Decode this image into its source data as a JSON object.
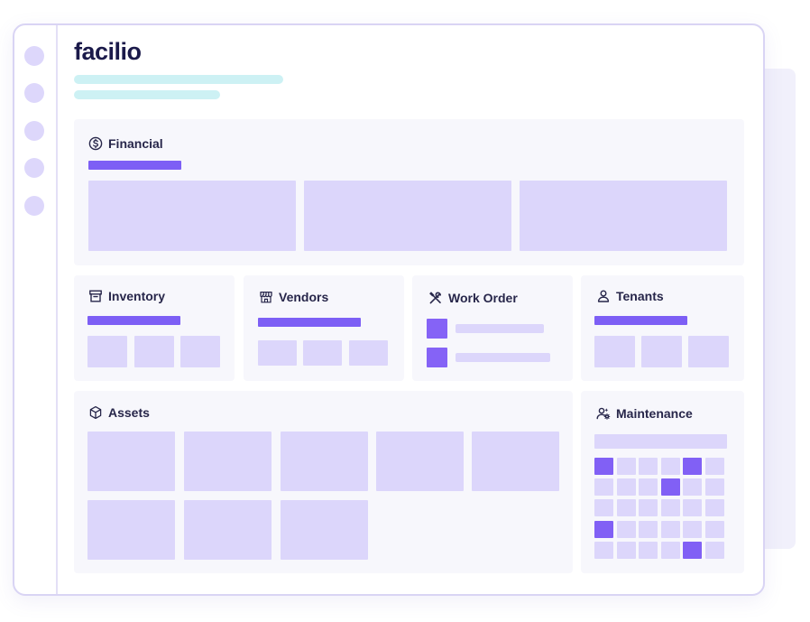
{
  "app": {
    "logo_text": "facilio"
  },
  "brand_colors": {
    "accent": "#7d5ff5",
    "light": "#dcd6fb",
    "cyan": "#cdf1f4",
    "panel": "#f7f7fc"
  },
  "sections": {
    "financial": {
      "title": "Financial",
      "icon": "dollar-circle-icon"
    },
    "inventory": {
      "title": "Inventory",
      "icon": "archive-box-icon"
    },
    "vendors": {
      "title": "Vendors",
      "icon": "storefront-icon"
    },
    "work_order": {
      "title": "Work Order",
      "icon": "tools-icon"
    },
    "tenants": {
      "title": "Tenants",
      "icon": "user-icon"
    },
    "assets": {
      "title": "Assets",
      "icon": "cube-icon"
    },
    "maintenance": {
      "title": "Maintenance",
      "icon": "user-gear-icon"
    }
  },
  "maintenance_calendar": {
    "rows": 5,
    "cols": 6,
    "highlighted": [
      [
        0,
        0
      ],
      [
        0,
        4
      ],
      [
        1,
        3
      ],
      [
        3,
        0
      ],
      [
        4,
        4
      ]
    ]
  }
}
